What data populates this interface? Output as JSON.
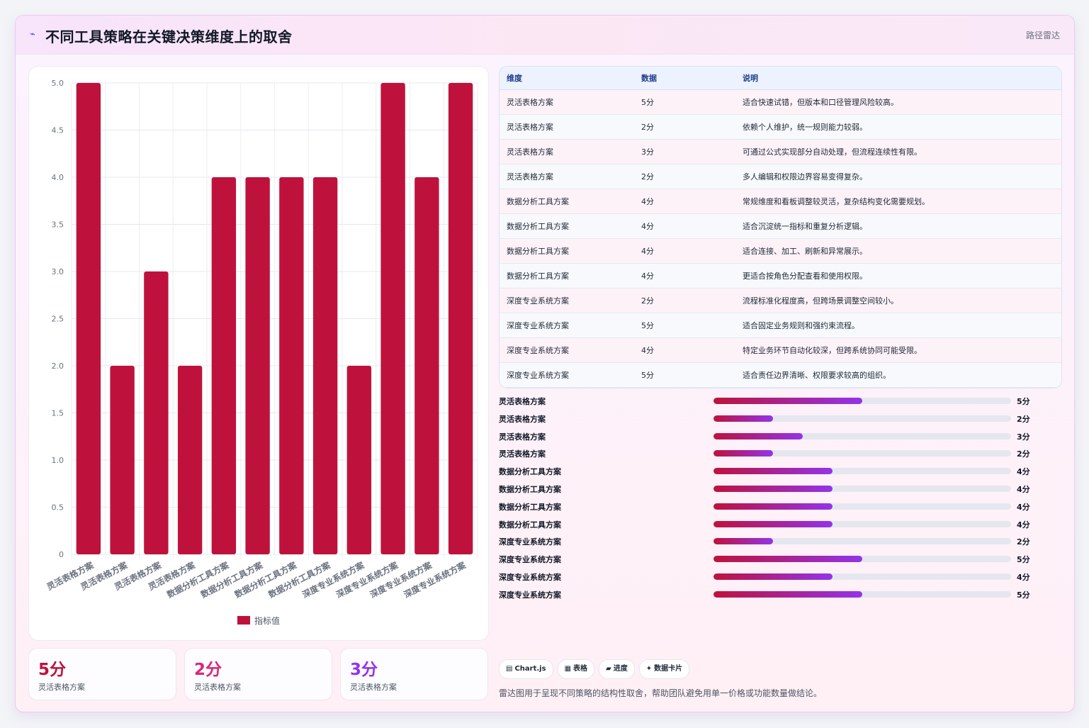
{
  "header": {
    "icon": "chart-pulse-icon",
    "title": "不同工具策略在关键决策维度上的取舍",
    "tag": "路径雷达"
  },
  "chart_data": {
    "type": "bar",
    "categories": [
      "灵活表格方案",
      "灵活表格方案",
      "灵活表格方案",
      "灵活表格方案",
      "数据分析工具方案",
      "数据分析工具方案",
      "数据分析工具方案",
      "数据分析工具方案",
      "深度专业系统方案",
      "深度专业系统方案",
      "深度专业系统方案",
      "深度专业系统方案"
    ],
    "series": [
      {
        "name": "指标值",
        "values": [
          5,
          2,
          3,
          2,
          4,
          4,
          4,
          4,
          2,
          5,
          4,
          5
        ],
        "color": "#be123c"
      }
    ],
    "ylim": [
      0,
      5
    ],
    "yticks": [
      "0",
      "0.5",
      "1.0",
      "1.5",
      "2.0",
      "2.5",
      "3.0",
      "3.5",
      "4.0",
      "4.5",
      "5.0"
    ],
    "grid": true,
    "legend": "bottom"
  },
  "stats": [
    {
      "value": "5分",
      "label": "灵活表格方案",
      "color": "#be123c"
    },
    {
      "value": "2分",
      "label": "灵活表格方案",
      "color": "#db2777"
    },
    {
      "value": "3分",
      "label": "灵活表格方案",
      "color": "#9333ea"
    }
  ],
  "table": {
    "headers": [
      "维度",
      "数据",
      "说明"
    ],
    "rows": [
      [
        "灵活表格方案",
        "5分",
        "适合快速试错，但版本和口径管理风险较高。"
      ],
      [
        "灵活表格方案",
        "2分",
        "依赖个人维护，统一规则能力较弱。"
      ],
      [
        "灵活表格方案",
        "3分",
        "可通过公式实现部分自动处理，但流程连续性有限。"
      ],
      [
        "灵活表格方案",
        "2分",
        "多人编辑和权限边界容易变得复杂。"
      ],
      [
        "数据分析工具方案",
        "4分",
        "常规维度和看板调整较灵活，复杂结构变化需要规划。"
      ],
      [
        "数据分析工具方案",
        "4分",
        "适合沉淀统一指标和重复分析逻辑。"
      ],
      [
        "数据分析工具方案",
        "4分",
        "适合连接、加工、刷新和异常展示。"
      ],
      [
        "数据分析工具方案",
        "4分",
        "更适合按角色分配查看和使用权限。"
      ],
      [
        "深度专业系统方案",
        "2分",
        "流程标准化程度高，但跨场景调整空间较小。"
      ],
      [
        "深度专业系统方案",
        "5分",
        "适合固定业务规则和强约束流程。"
      ],
      [
        "深度专业系统方案",
        "4分",
        "特定业务环节自动化较深，但跨系统协同可能受限。"
      ],
      [
        "深度专业系统方案",
        "5分",
        "适合责任边界清晰、权限要求较高的组织。"
      ]
    ]
  },
  "progress": {
    "max": 10,
    "items": [
      {
        "label": "灵活表格方案",
        "value": 5,
        "text": "5分"
      },
      {
        "label": "灵活表格方案",
        "value": 2,
        "text": "2分"
      },
      {
        "label": "灵活表格方案",
        "value": 3,
        "text": "3分"
      },
      {
        "label": "灵活表格方案",
        "value": 2,
        "text": "2分"
      },
      {
        "label": "数据分析工具方案",
        "value": 4,
        "text": "4分"
      },
      {
        "label": "数据分析工具方案",
        "value": 4,
        "text": "4分"
      },
      {
        "label": "数据分析工具方案",
        "value": 4,
        "text": "4分"
      },
      {
        "label": "数据分析工具方案",
        "value": 4,
        "text": "4分"
      },
      {
        "label": "深度专业系统方案",
        "value": 2,
        "text": "2分"
      },
      {
        "label": "深度专业系统方案",
        "value": 5,
        "text": "5分"
      },
      {
        "label": "深度专业系统方案",
        "value": 4,
        "text": "4分"
      },
      {
        "label": "深度专业系统方案",
        "value": 5,
        "text": "5分"
      }
    ]
  },
  "chips": [
    {
      "icon": "chart-icon",
      "glyph": "▤",
      "text": "Chart.js"
    },
    {
      "icon": "table-icon",
      "glyph": "▦",
      "text": "表格"
    },
    {
      "icon": "progress-icon",
      "glyph": "▰",
      "text": "进度"
    },
    {
      "icon": "sparkle-icon",
      "glyph": "✦",
      "text": "数据卡片"
    }
  ],
  "footnote": "雷达图用于呈现不同策略的结构性取舍，帮助团队避免用单一价格或功能数量做结论。"
}
